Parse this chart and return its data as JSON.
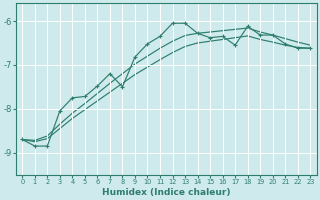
{
  "xlabel": "Humidex (Indice chaleur)",
  "background_color": "#ceeaec",
  "grid_color": "#b0d0d3",
  "line_color": "#2e7d6e",
  "xlim": [
    -0.5,
    23.5
  ],
  "ylim": [
    -9.5,
    -5.6
  ],
  "yticks": [
    -9,
    -8,
    -7,
    -6
  ],
  "xticks": [
    0,
    1,
    2,
    3,
    4,
    5,
    6,
    7,
    8,
    9,
    10,
    11,
    12,
    13,
    14,
    15,
    16,
    17,
    18,
    19,
    20,
    21,
    22,
    23
  ],
  "wiggly": {
    "x": [
      0,
      1,
      2,
      3,
      4,
      5,
      6,
      7,
      8,
      9,
      10,
      11,
      12,
      13,
      14,
      15,
      16,
      17,
      18,
      19,
      20,
      21,
      22,
      23
    ],
    "y": [
      -8.7,
      -8.85,
      -8.85,
      -8.05,
      -7.75,
      -7.72,
      -7.48,
      -7.2,
      -7.5,
      -6.82,
      -6.52,
      -6.35,
      -6.05,
      -6.05,
      -6.28,
      -6.38,
      -6.35,
      -6.55,
      -6.12,
      -6.32,
      -6.32,
      -6.52,
      -6.62,
      -6.62
    ]
  },
  "smooth1": {
    "x": [
      0,
      1,
      2,
      3,
      4,
      5,
      6,
      7,
      8,
      9,
      10,
      11,
      12,
      13,
      14,
      15,
      16,
      17,
      18,
      19,
      20,
      21,
      22,
      23
    ],
    "y": [
      -8.7,
      -8.75,
      -8.68,
      -8.45,
      -8.22,
      -8.02,
      -7.82,
      -7.62,
      -7.42,
      -7.22,
      -7.05,
      -6.88,
      -6.72,
      -6.58,
      -6.5,
      -6.46,
      -6.42,
      -6.38,
      -6.34,
      -6.42,
      -6.48,
      -6.55,
      -6.6,
      -6.62
    ]
  },
  "smooth2": {
    "x": [
      0,
      1,
      2,
      3,
      4,
      5,
      6,
      7,
      8,
      9,
      10,
      11,
      12,
      13,
      14,
      15,
      16,
      17,
      18,
      19,
      20,
      21,
      22,
      23
    ],
    "y": [
      -8.7,
      -8.72,
      -8.62,
      -8.35,
      -8.1,
      -7.88,
      -7.65,
      -7.42,
      -7.2,
      -6.98,
      -6.8,
      -6.62,
      -6.46,
      -6.33,
      -6.28,
      -6.25,
      -6.22,
      -6.19,
      -6.16,
      -6.25,
      -6.32,
      -6.4,
      -6.48,
      -6.55
    ]
  }
}
